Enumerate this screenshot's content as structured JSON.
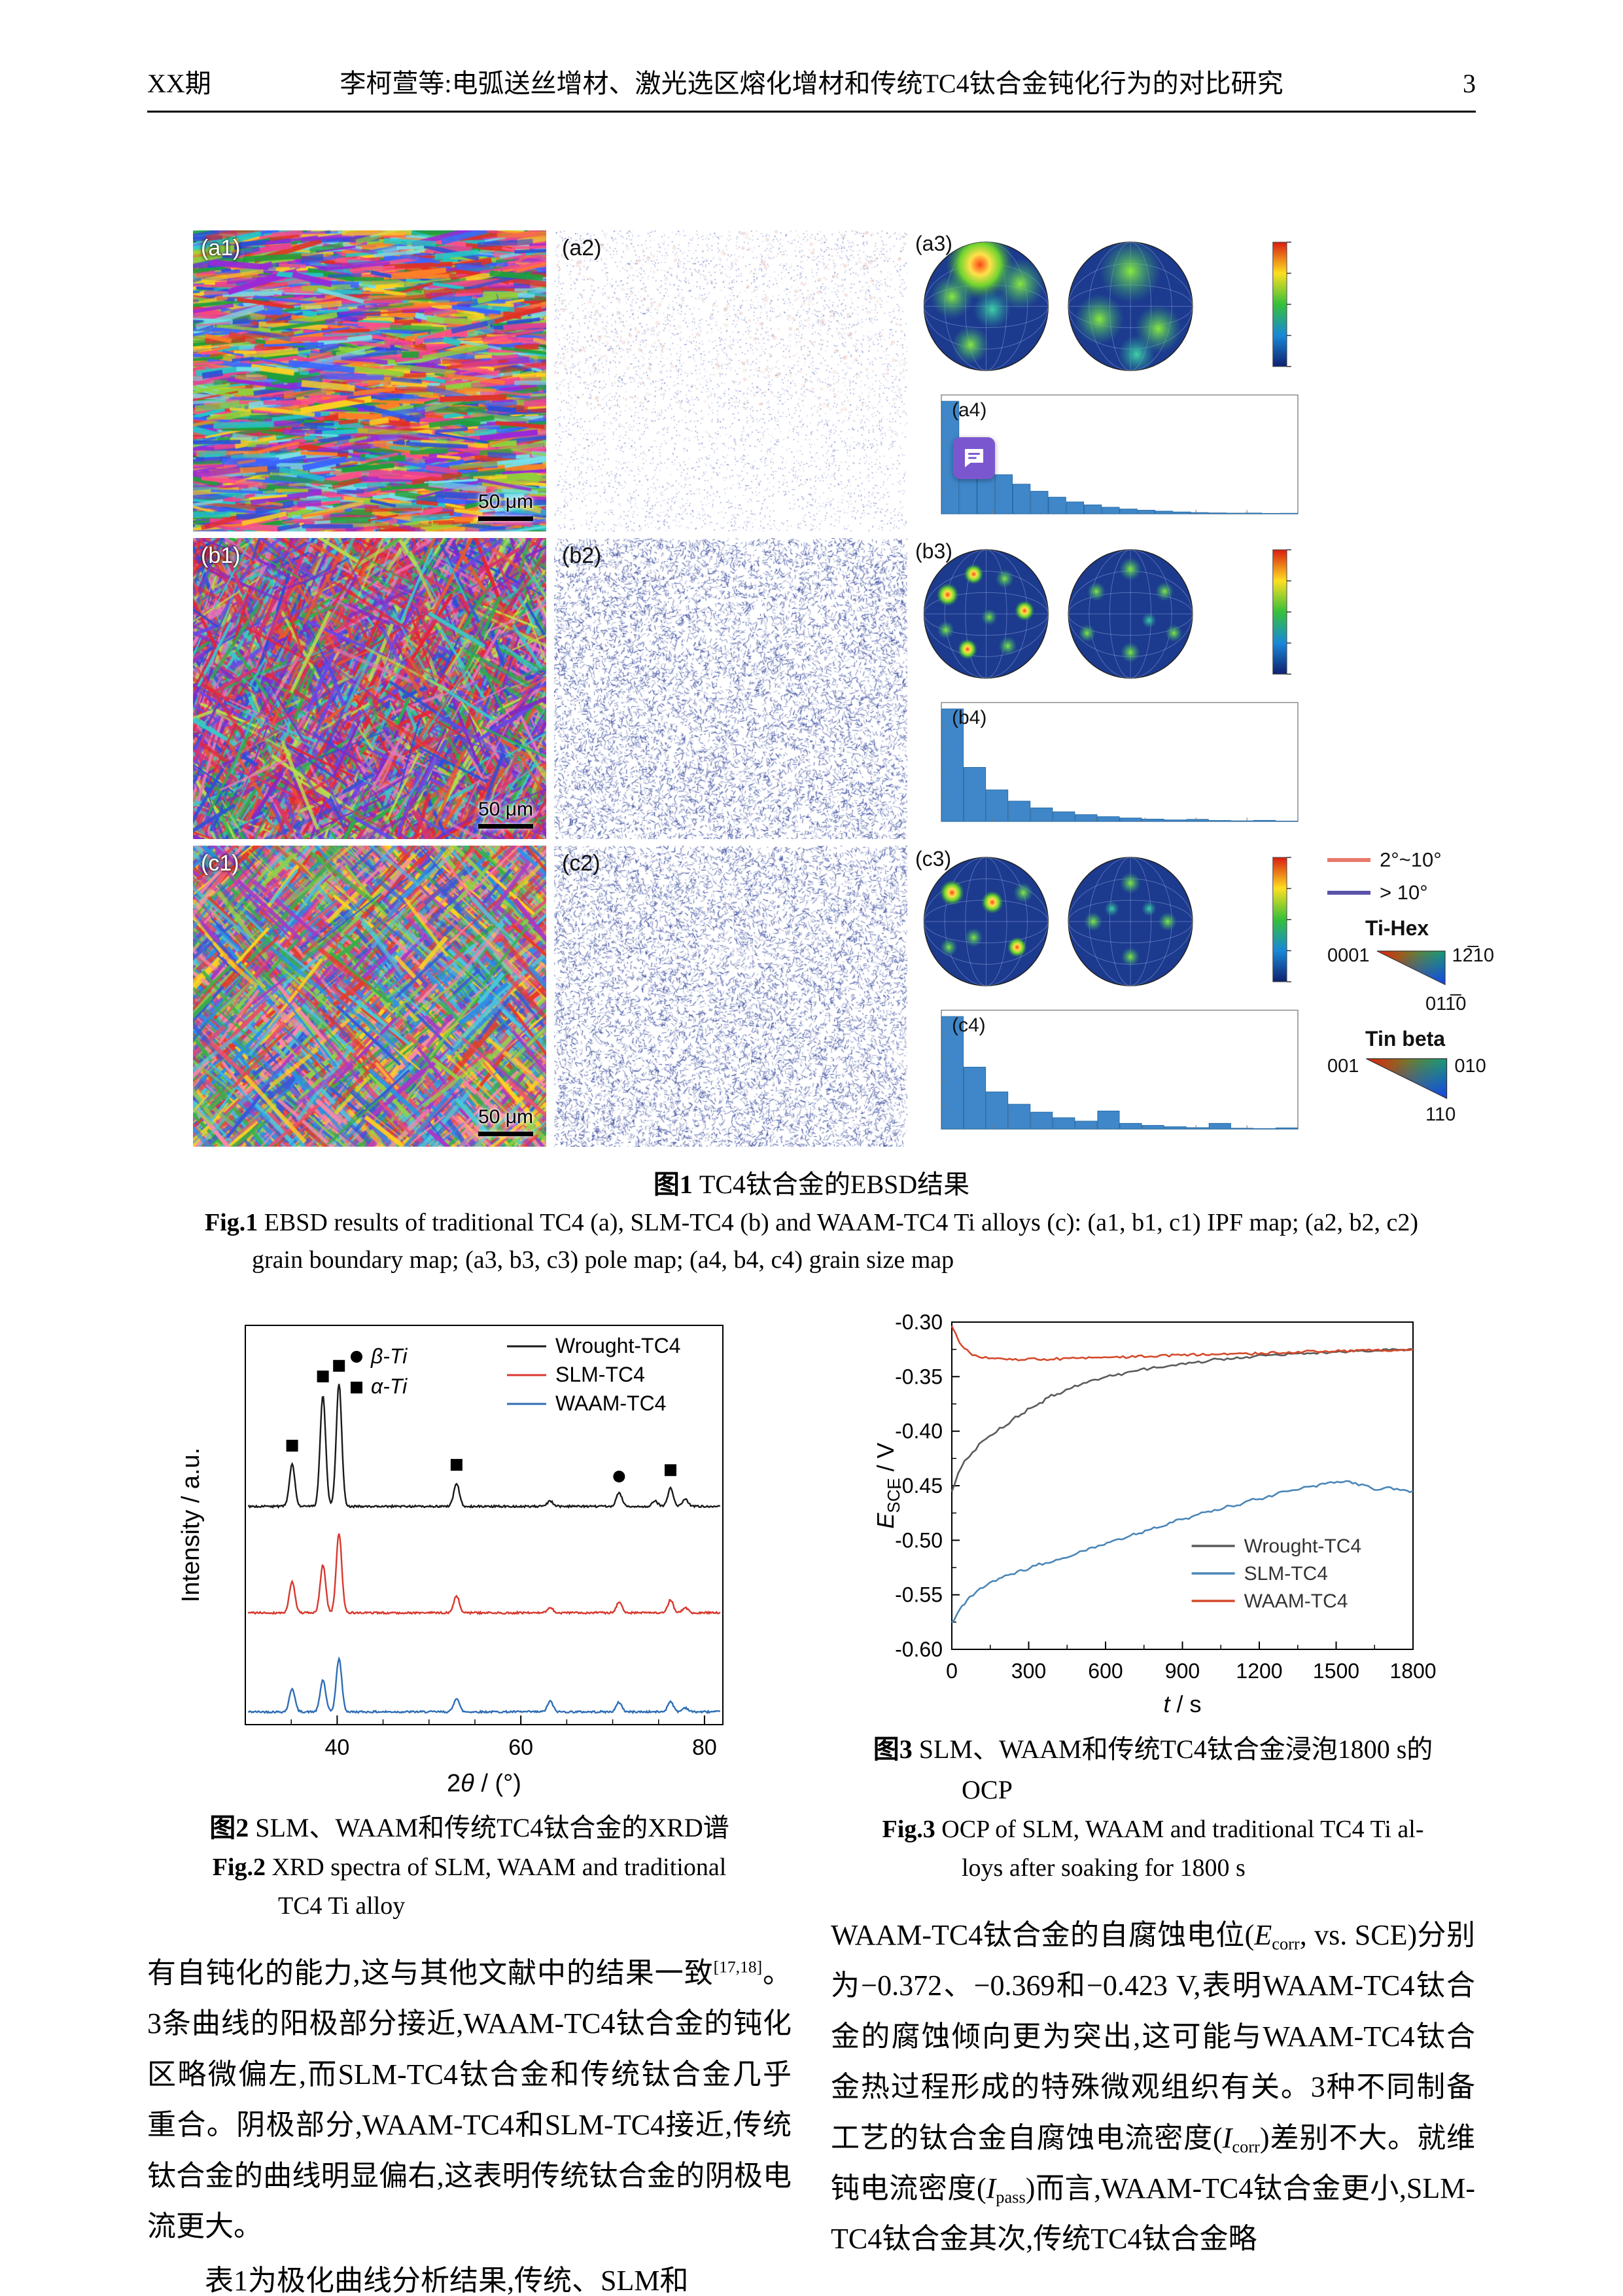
{
  "header": {
    "issue": "XX期",
    "title": "李柯萱等:电弧送丝增材、激光选区熔化增材和传统TC4钛合金钝化行为的对比研究",
    "page_number": "3"
  },
  "figure1": {
    "panels": {
      "rows": [
        {
          "ipf_label": "(a1)",
          "gb_label": "(a2)",
          "pole_label": "(a3)",
          "hist_label": "(a4)",
          "scalebar": "50 μm",
          "hist": [
            0.95,
            0.62,
            0.44,
            0.33,
            0.25,
            0.19,
            0.14,
            0.1,
            0.075,
            0.055,
            0.04,
            0.03,
            0.022,
            0.015,
            0.01,
            0.007,
            0.005,
            0.006,
            0.003,
            0.004
          ]
        },
        {
          "ipf_label": "(b1)",
          "gb_label": "(b2)",
          "pole_label": "(b3)",
          "hist_label": "(b4)",
          "scalebar": "50 μm",
          "hist": [
            1.0,
            0.48,
            0.28,
            0.18,
            0.12,
            0.085,
            0.06,
            0.042,
            0.03,
            0.02,
            0.013,
            0.018,
            0.008,
            0.005,
            0.009,
            0.003
          ]
        },
        {
          "ipf_label": "(c1)",
          "gb_label": "(c2)",
          "pole_label": "(c3)",
          "hist_label": "(c4)",
          "scalebar": "50 μm",
          "hist": [
            1.0,
            0.55,
            0.33,
            0.22,
            0.15,
            0.1,
            0.07,
            0.16,
            0.05,
            0.032,
            0.02,
            0.012,
            0.05,
            0.007,
            0.004,
            0.01
          ]
        }
      ]
    },
    "legend": {
      "misorientation": [
        {
          "label": "2°~10°",
          "color": "#e8796a"
        },
        {
          "label": "> 10°",
          "color": "#5b53a8"
        }
      ],
      "tihex": {
        "title": "Ti-Hex",
        "corner_left": "0001",
        "corner_right": "12̅10",
        "corner_bottom": "011̅0"
      },
      "tinbeta": {
        "title": "Tin beta",
        "corner_left": "001",
        "corner_right": "010",
        "corner_bottom": "110"
      }
    },
    "caption": {
      "cn_label": "图1",
      "cn_text": " TC4钛合金的EBSD结果",
      "en_label": "Fig.1",
      "en_line1": " EBSD results of traditional TC4 (a), SLM-TC4 (b) and WAAM-TC4 Ti alloys (c): (a1, b1, c1) IPF map; (a2, b2, c2)",
      "en_line2": "grain boundary map; (a3, b3, c3) pole map; (a4, b4, c4) grain size map"
    }
  },
  "figure2": {
    "caption": {
      "cn_label": "图2",
      "cn_text": " SLM、WAAM和传统TC4钛合金的XRD谱",
      "en_label": "Fig.2",
      "en_line1": " XRD spectra of SLM, WAAM and traditional",
      "en_line2": "TC4 Ti alloy"
    }
  },
  "figure3": {
    "caption": {
      "cn_label": "图3",
      "cn_text": " SLM、WAAM和传统TC4钛合金浸泡1800 s的",
      "cn_line2": "OCP",
      "en_label": "Fig.3",
      "en_line1": " OCP of SLM, WAAM and traditional TC4 Ti al-",
      "en_line2": "loys after soaking for 1800 s"
    }
  },
  "icons": {
    "comment": "speech-bubble-annotation"
  },
  "body": {
    "left_p1": [
      {
        "t": "有自钝化的能力,这与其他文献中的结果一致"
      },
      {
        "t": "[17,18]",
        "sup": true
      },
      {
        "t": "。3条曲线的阳极部分接近,WAAM-TC4钛合金的钝化区略微偏左,而SLM-TC4钛合金和传统钛合金几乎重合。阴极部分,WAAM-TC4和SLM-TC4接近,传统钛合金的曲线明显偏右,这表明传统钛合金的阴极电流更大。"
      }
    ],
    "left_p2": [
      {
        "t": "表1为极化曲线分析结果,传统、SLM和"
      }
    ],
    "right_p1": [
      {
        "t": "WAAM-TC4钛合金的自腐蚀电位("
      },
      {
        "t": "E",
        "i": true
      },
      {
        "t": "corr",
        "sub": true
      },
      {
        "t": ", vs. SCE)分别为−0.372、−0.369和−0.423 V,表明WAAM-TC4钛合金的腐蚀倾向更为突出,这可能与WAAM-TC4钛合金热过程形成的特殊微观组织有关。3种不同制备工艺的钛合金自腐蚀电流密度("
      },
      {
        "t": "I",
        "i": true
      },
      {
        "t": "corr",
        "sub": true
      },
      {
        "t": ")差别不大。就维钝电流密度("
      },
      {
        "t": "I",
        "i": true
      },
      {
        "t": "pass",
        "sub": true
      },
      {
        "t": ")而言,WAAM-TC4钛合金更小,SLM-TC4钛合金其次,传统TC4钛合金略"
      }
    ]
  },
  "chart_data": [
    {
      "id": "xrd",
      "type": "line",
      "title": "XRD spectra of SLM, WAAM and traditional TC4 Ti alloy",
      "xlabel_segments": [
        {
          "t": "2"
        },
        {
          "t": "θ",
          "style": "italic"
        },
        {
          "t": " / (°)"
        }
      ],
      "ylabel": "Intensity / a.u.",
      "xlim": [
        30,
        82
      ],
      "xticks": [
        40,
        60,
        80
      ],
      "minor_step": 5,
      "ylim": [
        0,
        3.75
      ],
      "grid": false,
      "legend_position": "top-right-inside",
      "marker_legend": [
        {
          "marker": "circle",
          "label": "β-Ti"
        },
        {
          "marker": "square",
          "label": "α-Ti"
        }
      ],
      "series": [
        {
          "name": "Wrought-TC4",
          "color": "#1a1a1a",
          "offset": 2.05,
          "peaks": [
            [
              35.1,
              0.4
            ],
            [
              38.45,
              1.05
            ],
            [
              40.2,
              1.15
            ],
            [
              53.0,
              0.22
            ],
            [
              63.2,
              0.05
            ],
            [
              70.7,
              0.13
            ],
            [
              74.6,
              0.05
            ],
            [
              76.3,
              0.17
            ],
            [
              77.9,
              0.07
            ]
          ]
        },
        {
          "name": "SLM-TC4",
          "color": "#d8382e",
          "offset": 1.05,
          "peaks": [
            [
              35.1,
              0.3
            ],
            [
              38.45,
              0.45
            ],
            [
              40.2,
              0.75
            ],
            [
              53.0,
              0.16
            ],
            [
              63.2,
              0.05
            ],
            [
              70.7,
              0.1
            ],
            [
              76.3,
              0.12
            ],
            [
              77.9,
              0.05
            ]
          ]
        },
        {
          "name": "WAAM-TC4",
          "color": "#2f6eb5",
          "offset": 0.12,
          "peaks": [
            [
              35.1,
              0.22
            ],
            [
              38.45,
              0.3
            ],
            [
              40.2,
              0.5
            ],
            [
              53.0,
              0.13
            ],
            [
              63.2,
              0.1
            ],
            [
              70.7,
              0.09
            ],
            [
              76.3,
              0.1
            ],
            [
              77.9,
              0.04
            ]
          ]
        }
      ],
      "peak_markers": {
        "square_x": [
          35.1,
          38.45,
          40.2,
          53.0,
          76.3
        ],
        "circle_x": [
          70.7
        ]
      }
    },
    {
      "id": "ocp",
      "type": "line",
      "title": "OCP after soaking for 1800 s",
      "xlabel_segments": [
        {
          "t": "t",
          "style": "italic"
        },
        {
          "t": " / s"
        }
      ],
      "ylabel_segments": [
        {
          "t": "E",
          "style": "italic"
        },
        {
          "t": "SCE",
          "style": "sub"
        },
        {
          "t": " / V"
        }
      ],
      "xlim": [
        0,
        1800
      ],
      "ylim": [
        -0.6,
        -0.3
      ],
      "xticks": [
        0,
        300,
        600,
        900,
        1200,
        1500,
        1800
      ],
      "yticks": [
        -0.3,
        -0.35,
        -0.4,
        -0.45,
        -0.5,
        -0.55,
        -0.6
      ],
      "grid": false,
      "legend_position": "bottom-right-inside",
      "series": [
        {
          "name": "Wrought-TC4",
          "color": "#5a5a5a",
          "points": [
            [
              0,
              -0.456
            ],
            [
              25,
              -0.438
            ],
            [
              50,
              -0.428
            ],
            [
              80,
              -0.42
            ],
            [
              120,
              -0.41
            ],
            [
              160,
              -0.402
            ],
            [
              200,
              -0.396
            ],
            [
              260,
              -0.386
            ],
            [
              320,
              -0.377
            ],
            [
              400,
              -0.367
            ],
            [
              480,
              -0.359
            ],
            [
              560,
              -0.353
            ],
            [
              650,
              -0.348
            ],
            [
              750,
              -0.343
            ],
            [
              850,
              -0.34
            ],
            [
              950,
              -0.337
            ],
            [
              1050,
              -0.334
            ],
            [
              1150,
              -0.332
            ],
            [
              1250,
              -0.33
            ],
            [
              1350,
              -0.329
            ],
            [
              1450,
              -0.328
            ],
            [
              1550,
              -0.327
            ],
            [
              1650,
              -0.326
            ],
            [
              1800,
              -0.325
            ]
          ]
        },
        {
          "name": "SLM-TC4",
          "color": "#4a86b8",
          "points": [
            [
              0,
              -0.576
            ],
            [
              20,
              -0.568
            ],
            [
              40,
              -0.56
            ],
            [
              70,
              -0.552
            ],
            [
              110,
              -0.545
            ],
            [
              160,
              -0.538
            ],
            [
              220,
              -0.532
            ],
            [
              280,
              -0.527
            ],
            [
              340,
              -0.522
            ],
            [
              380,
              -0.52
            ],
            [
              420,
              -0.517
            ],
            [
              460,
              -0.515
            ],
            [
              500,
              -0.511
            ],
            [
              560,
              -0.506
            ],
            [
              640,
              -0.5
            ],
            [
              720,
              -0.494
            ],
            [
              800,
              -0.488
            ],
            [
              900,
              -0.481
            ],
            [
              1000,
              -0.474
            ],
            [
              1100,
              -0.468
            ],
            [
              1200,
              -0.462
            ],
            [
              1300,
              -0.456
            ],
            [
              1400,
              -0.451
            ],
            [
              1480,
              -0.447
            ],
            [
              1540,
              -0.446
            ],
            [
              1600,
              -0.449
            ],
            [
              1650,
              -0.453
            ],
            [
              1700,
              -0.452
            ],
            [
              1750,
              -0.454
            ],
            [
              1800,
              -0.455
            ]
          ]
        },
        {
          "name": "WAAM-TC4",
          "color": "#d4492a",
          "points": [
            [
              0,
              -0.303
            ],
            [
              15,
              -0.31
            ],
            [
              30,
              -0.318
            ],
            [
              50,
              -0.325
            ],
            [
              80,
              -0.33
            ],
            [
              120,
              -0.332
            ],
            [
              180,
              -0.3335
            ],
            [
              260,
              -0.334
            ],
            [
              360,
              -0.334
            ],
            [
              460,
              -0.3335
            ],
            [
              560,
              -0.333
            ],
            [
              680,
              -0.332
            ],
            [
              800,
              -0.331
            ],
            [
              920,
              -0.33
            ],
            [
              1040,
              -0.3295
            ],
            [
              1160,
              -0.329
            ],
            [
              1280,
              -0.328
            ],
            [
              1400,
              -0.327
            ],
            [
              1520,
              -0.3265
            ],
            [
              1640,
              -0.326
            ],
            [
              1800,
              -0.325
            ]
          ]
        }
      ]
    }
  ]
}
